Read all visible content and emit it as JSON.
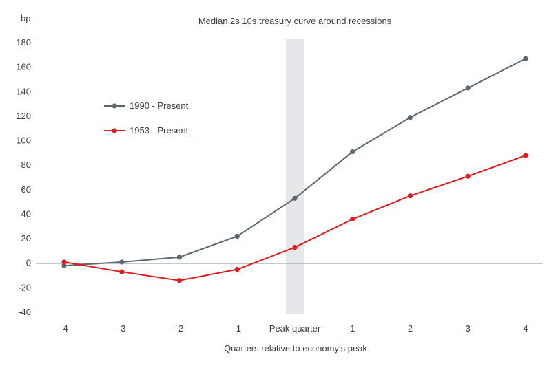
{
  "chart_data": {
    "type": "line",
    "title": "Median 2s 10s treasury curve around recessions",
    "xlabel": "Quarters relative to economy’s peak",
    "ylabel": "bp",
    "categories": [
      "-4",
      "-3",
      "-2",
      "-1",
      "Peak quarter",
      "1",
      "2",
      "3",
      "4"
    ],
    "ylim": [
      -40,
      180
    ],
    "yticks": [
      -40,
      -20,
      0,
      20,
      40,
      60,
      80,
      100,
      120,
      140,
      160,
      180
    ],
    "highlight_category": "Peak quarter",
    "grid": false,
    "legend_position": "upper-left",
    "series": [
      {
        "name": "1990 - Present",
        "color": "#5b6670",
        "values": [
          -2,
          1,
          5,
          22,
          53,
          91,
          119,
          143,
          167
        ]
      },
      {
        "name": "1953 - Present",
        "color": "#e3191b",
        "values": [
          1,
          -7,
          -14,
          -5,
          13,
          36,
          55,
          71,
          88
        ]
      }
    ]
  }
}
